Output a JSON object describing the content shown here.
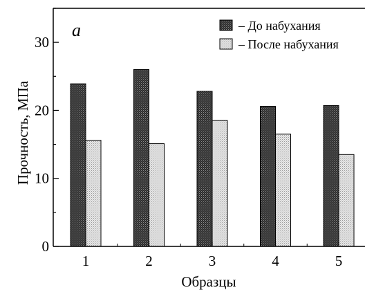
{
  "chart_data": {
    "type": "bar",
    "panel_label": "a",
    "xlabel": "Образцы",
    "ylabel": "Прочность, МПа",
    "categories": [
      "1",
      "2",
      "3",
      "4",
      "5"
    ],
    "ylim": [
      0,
      35
    ],
    "yticks": [
      0,
      10,
      20,
      30
    ],
    "legend_position": "top-right",
    "grid": false,
    "series": [
      {
        "name": "– До набухания",
        "values": [
          23.9,
          26.0,
          22.8,
          20.6,
          20.7
        ],
        "color": "#404040"
      },
      {
        "name": "– После набухания",
        "values": [
          15.6,
          15.1,
          18.5,
          16.5,
          13.5
        ],
        "color": "#d4d4d4"
      }
    ]
  }
}
